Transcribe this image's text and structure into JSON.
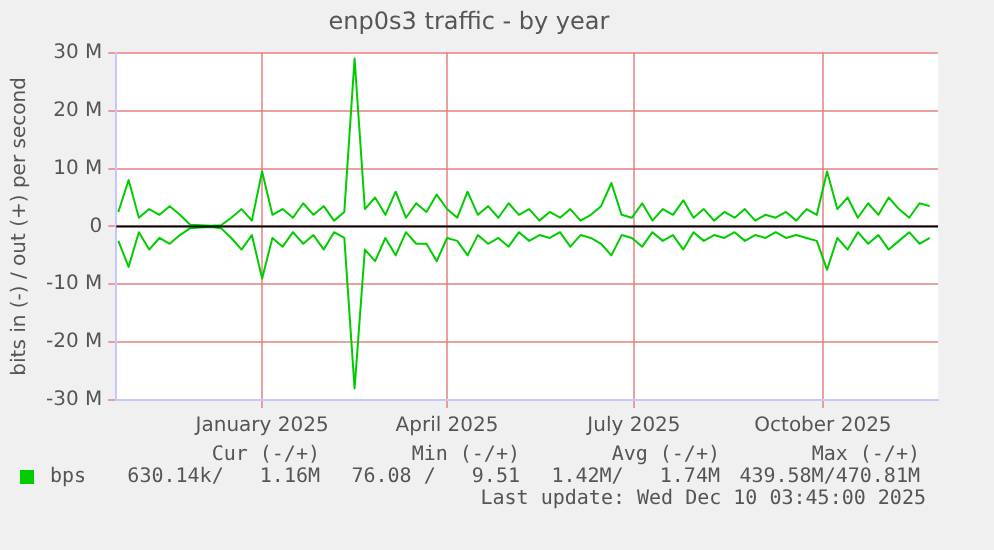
{
  "chart_data": {
    "type": "line",
    "title": "enp0s3 traffic - by year",
    "ylabel": "bits in (-) / out (+) per second",
    "x": [
      "2024-11-06",
      "2024-11-11",
      "2024-11-16",
      "2024-11-21",
      "2024-11-26",
      "2024-12-01",
      "2024-12-06",
      "2024-12-11",
      "2024-12-16",
      "2024-12-21",
      "2024-12-26",
      "2024-12-31",
      "2025-01-05",
      "2025-01-10",
      "2025-01-15",
      "2025-01-20",
      "2025-01-25",
      "2025-01-30",
      "2025-02-04",
      "2025-02-09",
      "2025-02-14",
      "2025-02-19",
      "2025-02-24",
      "2025-03-01",
      "2025-03-06",
      "2025-03-11",
      "2025-03-16",
      "2025-03-21",
      "2025-03-26",
      "2025-03-31",
      "2025-04-05",
      "2025-04-10",
      "2025-04-15",
      "2025-04-20",
      "2025-04-25",
      "2025-04-30",
      "2025-05-05",
      "2025-05-10",
      "2025-05-15",
      "2025-05-20",
      "2025-05-25",
      "2025-05-30",
      "2025-06-04",
      "2025-06-09",
      "2025-06-14",
      "2025-06-19",
      "2025-06-24",
      "2025-06-29",
      "2025-07-04",
      "2025-07-09",
      "2025-07-14",
      "2025-07-19",
      "2025-07-24",
      "2025-07-29",
      "2025-08-03",
      "2025-08-08",
      "2025-08-13",
      "2025-08-18",
      "2025-08-23",
      "2025-08-28",
      "2025-09-02",
      "2025-09-07",
      "2025-09-12",
      "2025-09-17",
      "2025-09-22",
      "2025-09-27",
      "2025-10-02",
      "2025-10-07",
      "2025-10-12",
      "2025-10-17",
      "2025-10-22",
      "2025-10-27",
      "2025-11-01",
      "2025-11-06",
      "2025-11-11",
      "2025-11-16",
      "2025-11-21",
      "2025-11-26",
      "2025-12-01",
      "2025-12-06"
    ],
    "series": [
      {
        "name": "bps",
        "color": "#00cc00",
        "values": [
          2.5,
          8,
          1.5,
          3,
          2,
          3.5,
          2,
          0.3,
          0.2,
          0.1,
          0.2,
          1.5,
          3,
          1,
          9.5,
          2,
          3,
          1.5,
          4,
          2,
          3.5,
          1,
          2.5,
          29,
          3,
          5,
          2,
          6,
          1.5,
          4,
          2.5,
          5.5,
          3,
          1.5,
          6,
          2,
          3.5,
          1.5,
          4,
          2,
          3,
          1,
          2.5,
          1.5,
          3,
          1,
          2,
          3.5,
          7.5,
          2,
          1.5,
          4,
          1,
          3,
          2,
          4.5,
          1.5,
          3,
          1,
          2.5,
          1.5,
          3,
          1,
          2,
          1.5,
          2.5,
          1,
          3,
          2,
          9.5,
          3,
          5,
          1.5,
          4,
          2,
          5,
          3,
          1.5,
          4,
          3.5
        ]
      },
      {
        "color": "#00cc00",
        "values": [
          -2.5,
          -7,
          -1,
          -4,
          -2,
          -3,
          -1.5,
          -0.3,
          -0.2,
          -0.1,
          -0.3,
          -2,
          -4,
          -1.5,
          -9,
          -2,
          -3.5,
          -1,
          -3,
          -1.5,
          -4,
          -1,
          -2,
          -28,
          -4,
          -6,
          -2,
          -5,
          -1,
          -3,
          -3,
          -6,
          -2,
          -2.5,
          -5,
          -1.5,
          -3,
          -2,
          -3.5,
          -1,
          -2.5,
          -1.5,
          -2,
          -1,
          -3.5,
          -1.5,
          -2,
          -3,
          -5,
          -1.5,
          -2,
          -3.5,
          -1,
          -2.5,
          -1.5,
          -4,
          -1,
          -2.5,
          -1.5,
          -2,
          -1,
          -2.5,
          -1.5,
          -2,
          -1,
          -2,
          -1.5,
          -2,
          -2.5,
          -7.5,
          -2,
          -4,
          -1,
          -3,
          -1.5,
          -4,
          -2.5,
          -1,
          -3,
          -2
        ]
      }
    ],
    "xlim": [
      "2024-11-05",
      "2025-12-10"
    ],
    "xticks": [
      {
        "value": "2025-01-15",
        "label": "January 2025"
      },
      {
        "value": "2025-04-15",
        "label": "April 2025"
      },
      {
        "value": "2025-07-15",
        "label": "July 2025"
      },
      {
        "value": "2025-10-15",
        "label": "October 2025"
      }
    ],
    "ylim": [
      -30,
      30
    ],
    "yticks": [
      {
        "value": -30,
        "label": "-30 M"
      },
      {
        "value": -20,
        "label": "-20 M"
      },
      {
        "value": -10,
        "label": "-10 M"
      },
      0,
      {
        "value": 10,
        "label": "10 M"
      },
      {
        "value": 20,
        "label": "20 M"
      },
      {
        "value": 30,
        "label": "30 M"
      }
    ],
    "ref_lines": [
      {
        "axis": "y",
        "value": 0,
        "color": "#000000"
      }
    ],
    "grid": true,
    "legend": "bottom",
    "marker": "none",
    "line_style": "solid",
    "annotations": [
      "Cur (-/+)",
      "Min (-/+)",
      "Avg (-/+)",
      "Max (-/+)",
      "630.14k/   1.16M",
      "76.08 /   9.51",
      "1.42M/   1.74M",
      "439.58M/470.81M",
      "Last update: Wed Dec 10 03:45:00 2025"
    ]
  }
}
